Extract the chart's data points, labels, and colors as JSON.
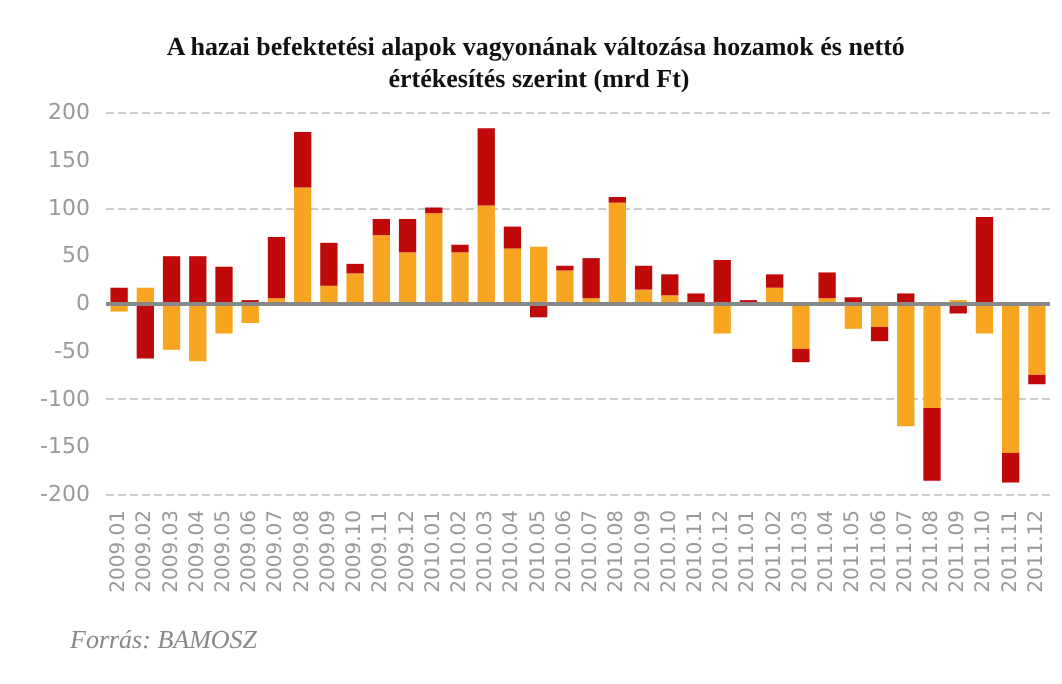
{
  "chart_data": {
    "type": "bar",
    "title": "A hazai befektetési alapok vagyonának változása hozamok és nettó értékesítés szerint (mrd Ft)",
    "categories": [
      "2009.01",
      "2009.02",
      "2009.03",
      "2009.04",
      "2009.05",
      "2009.06",
      "2009.07",
      "2009.08",
      "2009.09",
      "2009.10",
      "2009.11",
      "2009.12",
      "2010.01",
      "2010.02",
      "2010.03",
      "2010.04",
      "2010.05",
      "2010.06",
      "2010.07",
      "2010.08",
      "2010.09",
      "2010.10",
      "2010.11",
      "2010.12",
      "2011.01",
      "2011.02",
      "2011.03",
      "2011.04",
      "2011.05",
      "2011.06",
      "2011.07",
      "2011.08",
      "2011.09",
      "2011.10",
      "2011.11",
      "2011.12"
    ],
    "series": [
      {
        "color": "#f7a520",
        "values": [
          -9,
          16,
          -49,
          -61,
          -32,
          -21,
          5,
          121,
          18,
          31,
          71,
          53,
          94,
          53,
          102,
          57,
          59,
          34,
          5,
          105,
          14,
          8,
          0,
          -32,
          -3,
          16,
          -48,
          5,
          -27,
          -25,
          -129,
          -110,
          3,
          -32,
          -157,
          -75
        ]
      },
      {
        "color": "#c00a0a",
        "values": [
          16,
          -58,
          49,
          49,
          38,
          3,
          64,
          58,
          45,
          10,
          17,
          35,
          6,
          8,
          81,
          23,
          -15,
          5,
          42,
          6,
          25,
          22,
          10,
          45,
          3,
          14,
          -14,
          27,
          6,
          -15,
          10,
          -76,
          -11,
          90,
          -31,
          -10
        ]
      }
    ],
    "stacked": true,
    "ylim": [
      -200,
      200
    ],
    "yticks": [
      -200,
      -150,
      -100,
      -50,
      0,
      50,
      100,
      150,
      200
    ],
    "grid": "y",
    "annotations": [
      "Forrás: BAMOSZ"
    ]
  }
}
